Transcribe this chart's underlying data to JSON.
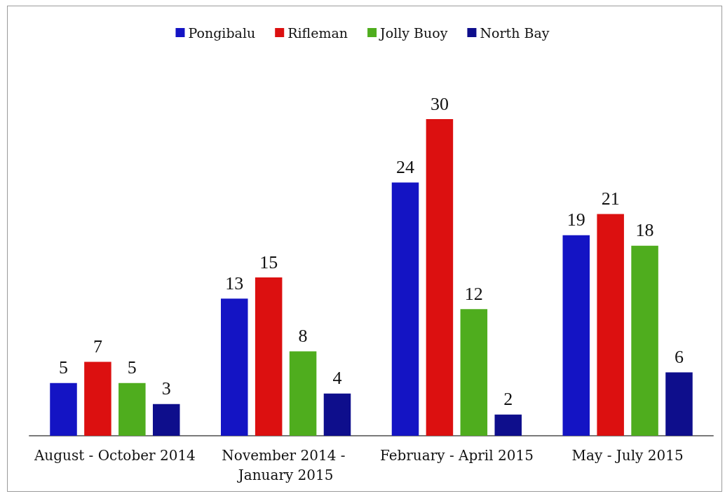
{
  "chart_data": {
    "type": "bar",
    "categories": [
      "August - October 2014",
      "November 2014 - January 2015",
      "February - April 2015",
      "May - July 2015"
    ],
    "series": [
      {
        "name": "Pongibalu",
        "color": "#1414c4",
        "values": [
          5,
          13,
          24,
          19
        ]
      },
      {
        "name": "Rifleman",
        "color": "#dc1010",
        "values": [
          7,
          15,
          30,
          21
        ]
      },
      {
        "name": "Jolly Buoy",
        "color": "#4fad1e",
        "values": [
          5,
          8,
          12,
          18
        ]
      },
      {
        "name": "North Bay",
        "color": "#0e0e8c",
        "values": [
          3,
          4,
          2,
          6
        ]
      }
    ],
    "data_labels": true,
    "legend": "top",
    "tick_labels": "x"
  }
}
